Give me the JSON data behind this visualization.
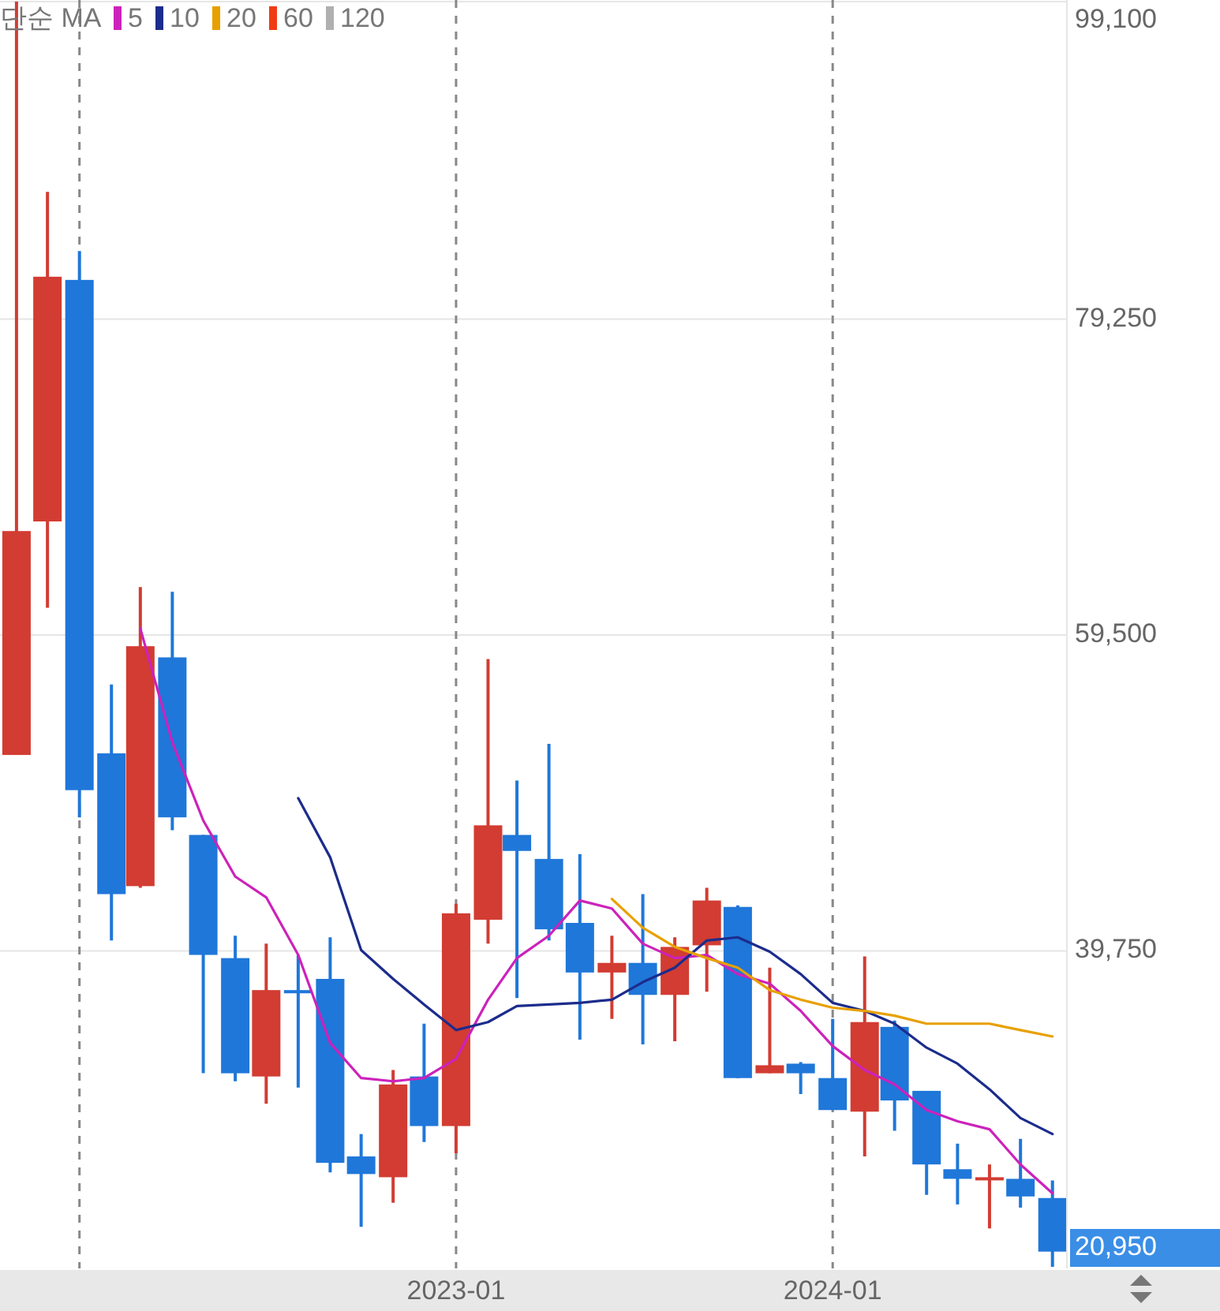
{
  "chart_data": {
    "type": "candlestick",
    "legend_title": "단순 MA",
    "legend": "top left",
    "grid": true,
    "x": [
      "2021-11",
      "2021-12",
      "2022-01",
      "2022-02",
      "2022-03",
      "2022-04",
      "2022-05",
      "2022-06",
      "2022-07",
      "2022-08",
      "2022-09",
      "2022-10",
      "2022-11",
      "2022-12",
      "2023-01",
      "2023-02",
      "2023-03",
      "2023-04",
      "2023-05",
      "2023-06",
      "2023-07",
      "2023-08",
      "2023-09",
      "2023-10",
      "2023-11",
      "2023-12",
      "2024-01",
      "2024-02",
      "2024-03",
      "2024-04",
      "2024-05",
      "2024-06",
      "2024-07",
      "2024-08"
    ],
    "ohlc": [
      [
        52000,
        99100,
        52000,
        66000
      ],
      [
        66600,
        87200,
        61200,
        81900
      ],
      [
        81700,
        83500,
        48100,
        49800
      ],
      [
        52100,
        56400,
        40400,
        43300
      ],
      [
        43800,
        62500,
        43700,
        58800
      ],
      [
        58100,
        62200,
        47300,
        48100
      ],
      [
        47000,
        47000,
        32100,
        39500
      ],
      [
        39300,
        40700,
        31600,
        32100
      ],
      [
        31900,
        40200,
        30200,
        37300
      ],
      [
        37300,
        39500,
        31200,
        37100
      ],
      [
        38000,
        40600,
        25900,
        26500
      ],
      [
        26900,
        28300,
        22500,
        25800
      ],
      [
        25600,
        32300,
        24000,
        31400
      ],
      [
        31900,
        35200,
        27800,
        28800
      ],
      [
        28800,
        42700,
        27100,
        42100
      ],
      [
        41700,
        58000,
        40200,
        47600
      ],
      [
        47000,
        50400,
        36800,
        46000
      ],
      [
        45500,
        52700,
        40400,
        41100
      ],
      [
        41500,
        45800,
        34200,
        38400
      ],
      [
        38400,
        40700,
        35500,
        39000
      ],
      [
        39000,
        43300,
        33900,
        37000
      ],
      [
        37000,
        40600,
        34100,
        40000
      ],
      [
        40100,
        43700,
        37200,
        42900
      ],
      [
        42500,
        42600,
        31800,
        31800
      ],
      [
        32100,
        38700,
        32100,
        32600
      ],
      [
        32700,
        32800,
        30800,
        32100
      ],
      [
        31800,
        35500,
        29800,
        29800
      ],
      [
        29700,
        39400,
        26900,
        35300
      ],
      [
        35000,
        35400,
        28500,
        30400
      ],
      [
        31000,
        31000,
        24500,
        26400
      ],
      [
        26100,
        27700,
        23900,
        25500
      ],
      [
        25500,
        26400,
        22400,
        25600
      ],
      [
        25500,
        28000,
        23700,
        24400
      ],
      [
        24300,
        25400,
        20000,
        20950
      ]
    ],
    "colors": [
      "#d23c32",
      "#d23c32",
      "#1f77d9",
      "#1f77d9",
      "#d23c32",
      "#1f77d9",
      "#1f77d9",
      "#1f77d9",
      "#d23c32",
      "#1f77d9",
      "#1f77d9",
      "#1f77d9",
      "#d23c32",
      "#1f77d9",
      "#d23c32",
      "#d23c32",
      "#1f77d9",
      "#1f77d9",
      "#1f77d9",
      "#d23c32",
      "#1f77d9",
      "#d23c32",
      "#d23c32",
      "#1f77d9",
      "#d23c32",
      "#1f77d9",
      "#1f77d9",
      "#d23c32",
      "#1f77d9",
      "#1f77d9",
      "#1f77d9",
      "#d23c32",
      "#1f77d9",
      "#1f77d9"
    ],
    "series": [
      {
        "name": "5",
        "type": "line",
        "color": "#cc22bb",
        "values": [
          null,
          null,
          null,
          null,
          59900,
          52800,
          47900,
          44400,
          43100,
          39500,
          34000,
          31800,
          31600,
          31800,
          33000,
          36700,
          39300,
          40700,
          42900,
          42400,
          40200,
          39300,
          39500,
          38300,
          37700,
          36000,
          33800,
          32300,
          31400,
          29800,
          29100,
          28600,
          26400,
          24600
        ]
      },
      {
        "name": "10",
        "type": "line",
        "color": "#1c2c8c",
        "values": [
          null,
          null,
          null,
          null,
          null,
          null,
          null,
          null,
          null,
          49300,
          45600,
          39800,
          38000,
          36400,
          34800,
          35300,
          36300,
          36400,
          36500,
          36700,
          37800,
          38700,
          40400,
          40600,
          39700,
          38300,
          36500,
          36000,
          35200,
          33700,
          32700,
          31100,
          29300,
          28300
        ]
      },
      {
        "name": "20",
        "type": "line",
        "color": "#e8a000",
        "values": [
          null,
          null,
          null,
          null,
          null,
          null,
          null,
          null,
          null,
          null,
          null,
          null,
          null,
          null,
          null,
          null,
          null,
          null,
          null,
          43000,
          41200,
          40000,
          39300,
          38700,
          37300,
          36700,
          36200,
          36000,
          35700,
          35200,
          35200,
          35200,
          34800,
          34400
        ]
      },
      {
        "name": "60",
        "type": "line",
        "color": "#f03c14",
        "values": [
          null,
          null,
          null,
          null,
          null,
          null,
          null,
          null,
          null,
          null,
          null,
          null,
          null,
          null,
          null,
          null,
          null,
          null,
          null,
          null,
          null,
          null,
          null,
          null,
          null,
          null,
          null,
          null,
          null,
          null,
          null,
          null,
          null,
          null
        ]
      },
      {
        "name": "120",
        "type": "line",
        "color": "#b0b0b0",
        "values": [
          null,
          null,
          null,
          null,
          null,
          null,
          null,
          null,
          null,
          null,
          null,
          null,
          null,
          null,
          null,
          null,
          null,
          null,
          null,
          null,
          null,
          null,
          null,
          null,
          null,
          null,
          null,
          null,
          null,
          null,
          null,
          null,
          null,
          null
        ]
      }
    ],
    "xlim": [
      "2021-10-16",
      "2024-08-15"
    ],
    "xticks": [
      {
        "value": "2022-01",
        "label": null
      },
      "2023-01",
      "2024-01"
    ],
    "ylim": [
      19900,
      99200
    ],
    "yticks": [
      {
        "value": 39750,
        "label": "39,750"
      },
      {
        "value": 59500,
        "label": "59,500"
      },
      {
        "value": 79250,
        "label": "79,250"
      },
      {
        "value": 99100,
        "label": "99,100"
      }
    ],
    "annotations": [
      "20,950"
    ]
  }
}
